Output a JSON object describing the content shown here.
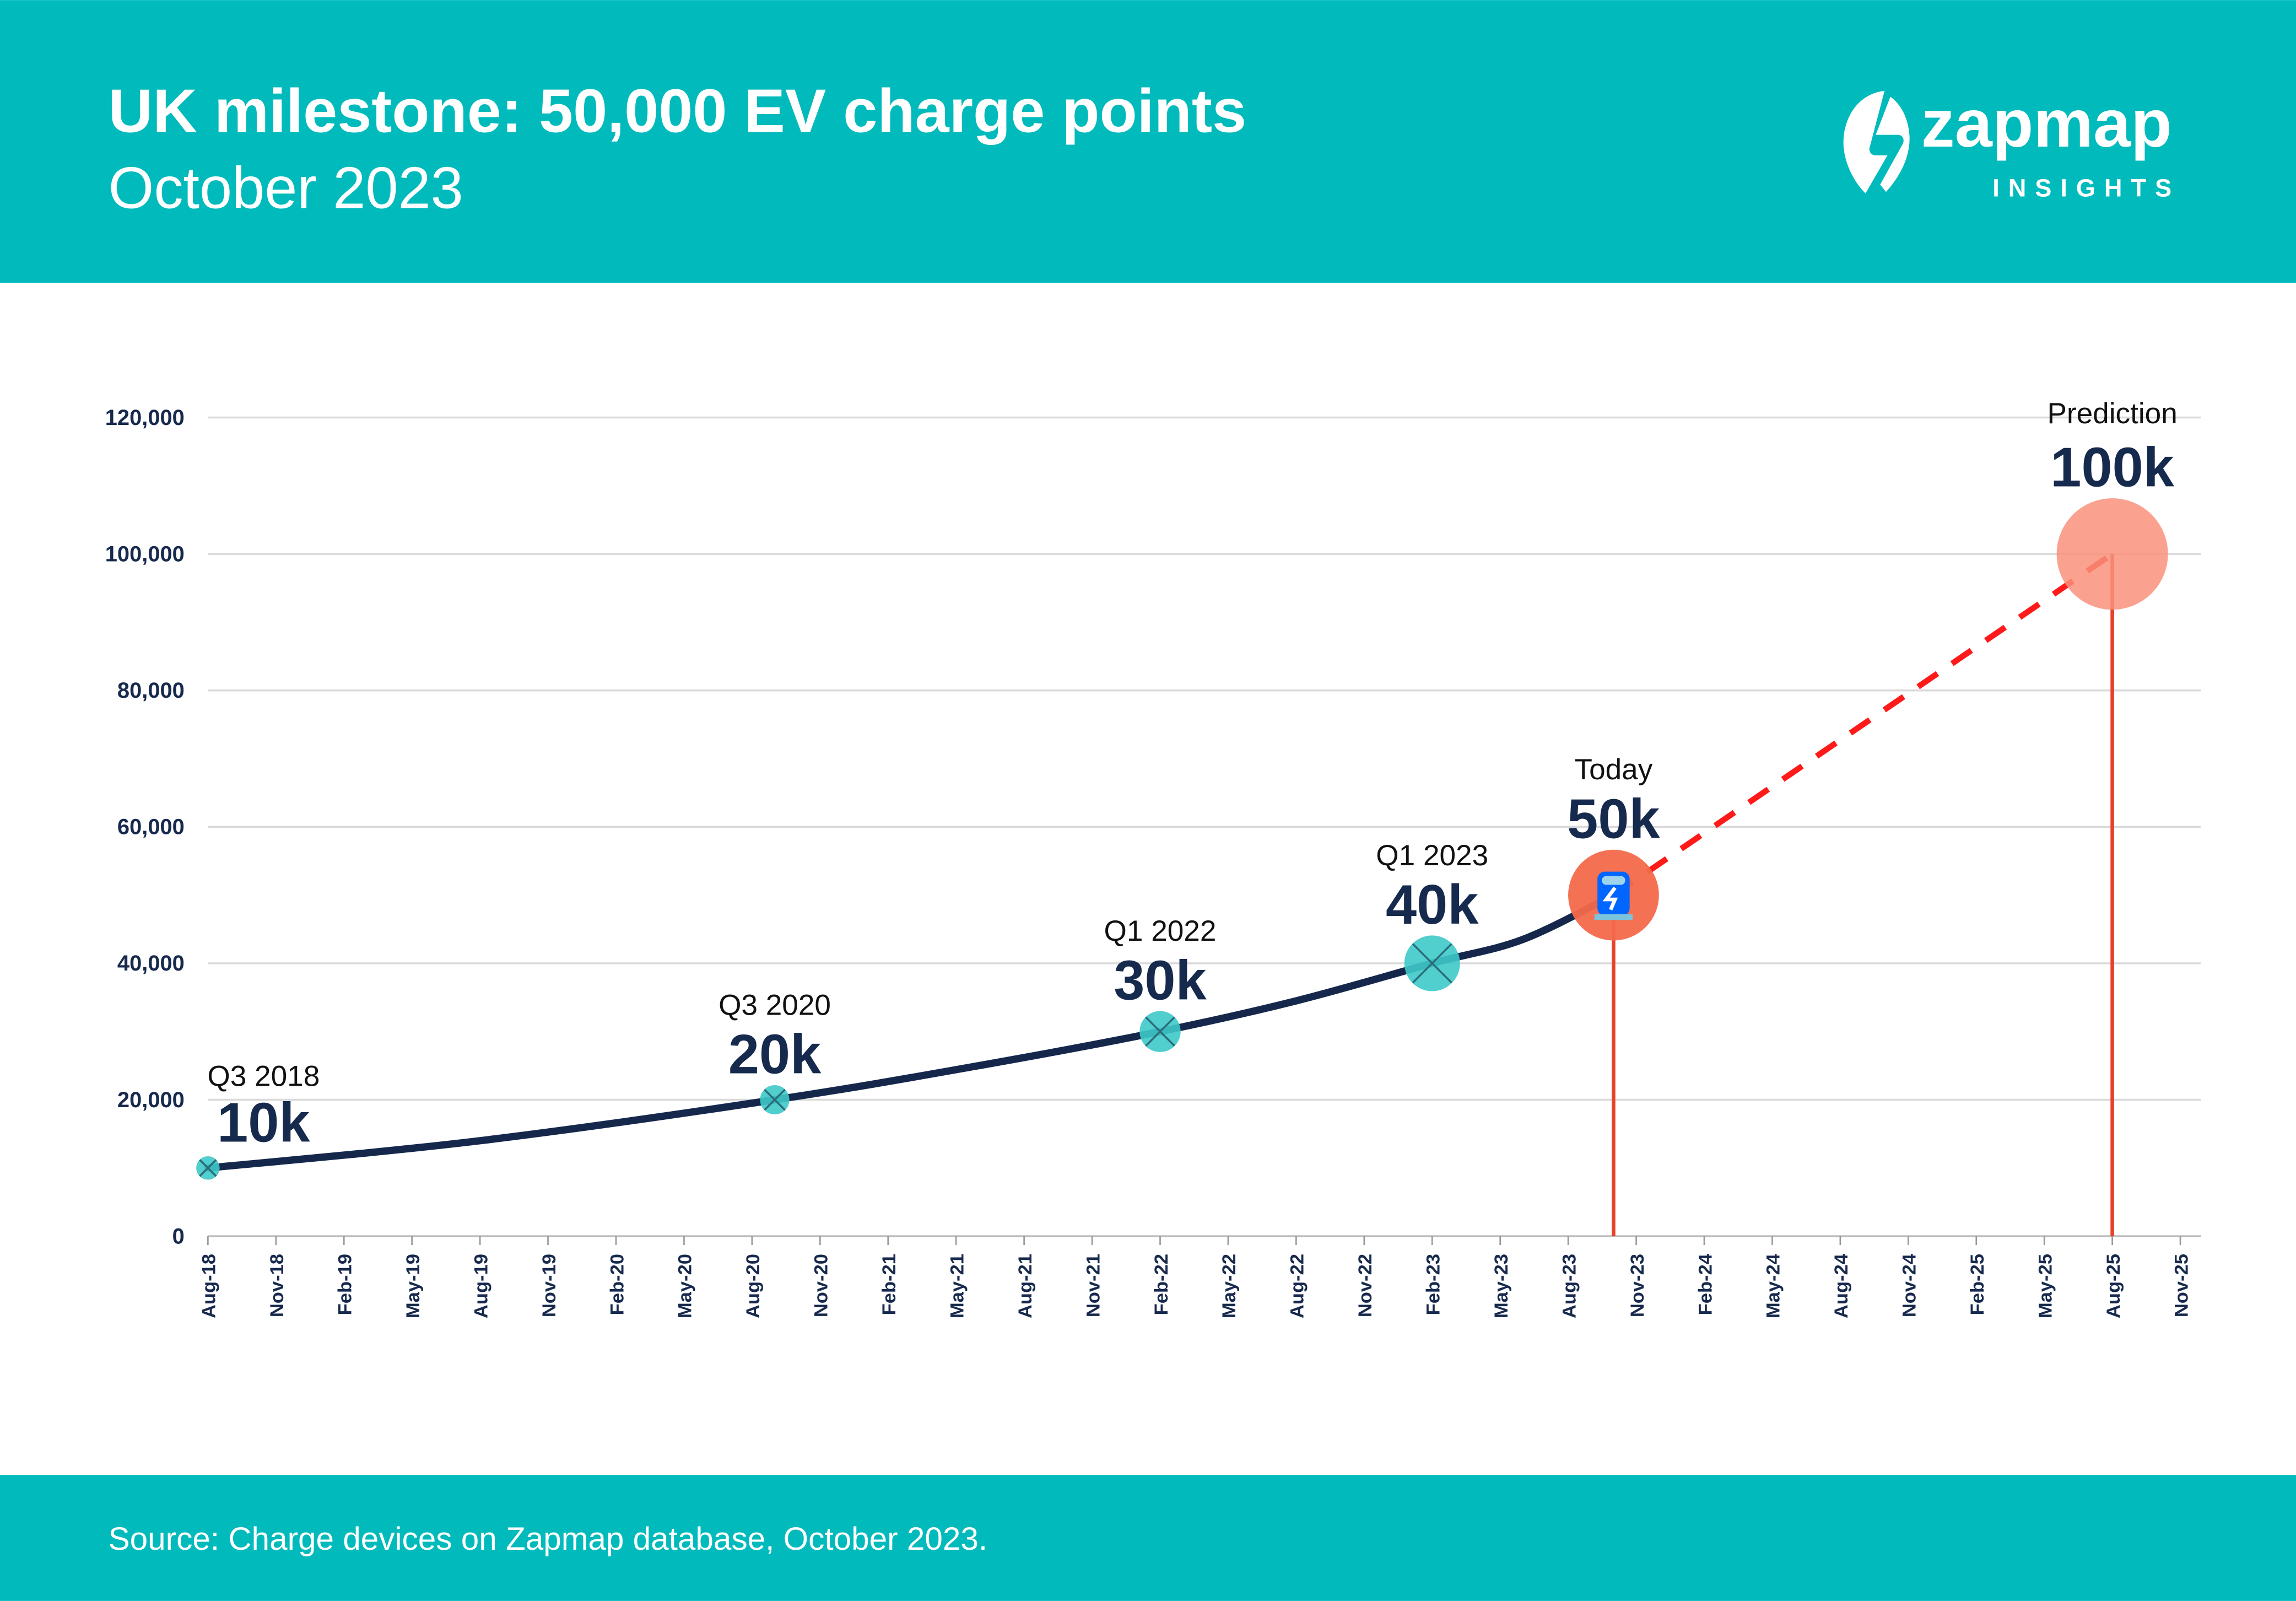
{
  "header": {
    "title": "UK milestone: 50,000 EV charge points",
    "subtitle": "October 2023",
    "logo_text": "zapmap",
    "logo_sub": "INSIGHTS",
    "background": "#00BABC"
  },
  "footer": {
    "source": "Source: Charge devices on Zapmap database, October 2023."
  },
  "chart_data": {
    "type": "line",
    "title": "",
    "xlabel": "",
    "ylabel": "",
    "ylim": [
      0,
      120000
    ],
    "yticks": [
      0,
      20000,
      40000,
      60000,
      80000,
      100000,
      120000
    ],
    "ytick_labels": [
      "0",
      "20,000",
      "40,000",
      "60,000",
      "80,000",
      "100,000",
      "120,000"
    ],
    "xlim": [
      "2018-08",
      "2025-11"
    ],
    "xtick_labels": [
      "Aug-18",
      "Nov-18",
      "Feb-19",
      "May-19",
      "Aug-19",
      "Nov-19",
      "Feb-20",
      "May-20",
      "Aug-20",
      "Nov-20",
      "Feb-21",
      "May-21",
      "Aug-21",
      "Nov-21",
      "Feb-22",
      "May-22",
      "Aug-22",
      "Nov-22",
      "Feb-23",
      "May-23",
      "Aug-23",
      "Nov-23",
      "Feb-24",
      "May-24",
      "Aug-24",
      "Nov-24",
      "Feb-25",
      "May-25",
      "Aug-25",
      "Nov-25"
    ],
    "grid": "horizontal",
    "series": [
      {
        "style": "solid",
        "color": "#15284C",
        "points": [
          {
            "x": "2018-08",
            "y": 10000
          },
          {
            "x": "2019-08",
            "y": 14000
          },
          {
            "x": "2020-09",
            "y": 20000
          },
          {
            "x": "2021-06",
            "y": 25000
          },
          {
            "x": "2022-02",
            "y": 30000
          },
          {
            "x": "2022-08",
            "y": 34500
          },
          {
            "x": "2023-02",
            "y": 40000
          },
          {
            "x": "2023-06",
            "y": 43500
          },
          {
            "x": "2023-10",
            "y": 50000
          }
        ]
      },
      {
        "style": "dashed",
        "color": "#FF1A1A",
        "points": [
          {
            "x": "2023-10",
            "y": 50000
          },
          {
            "x": "2025-08",
            "y": 100000
          }
        ]
      }
    ],
    "milestones": [
      {
        "x": "2018-08",
        "y": 10000,
        "period": "Q3 2018",
        "value": "10k",
        "kind": "past",
        "color": "#3EC9C9"
      },
      {
        "x": "2020-09",
        "y": 20000,
        "period": "Q3 2020",
        "value": "20k",
        "kind": "past",
        "color": "#3EC9C9"
      },
      {
        "x": "2022-02",
        "y": 30000,
        "period": "Q1 2022",
        "value": "30k",
        "kind": "past",
        "color": "#3EC9C9"
      },
      {
        "x": "2023-02",
        "y": 40000,
        "period": "Q1 2023",
        "value": "40k",
        "kind": "past",
        "color": "#3EC9C9"
      },
      {
        "x": "2023-10",
        "y": 50000,
        "period": "Today",
        "value": "50k",
        "kind": "today",
        "color": "#F4694B",
        "icon": "charging-station-icon"
      },
      {
        "x": "2025-08",
        "y": 100000,
        "period": "Prediction",
        "value": "100k",
        "kind": "prediction",
        "color": "#F9917B"
      }
    ]
  }
}
